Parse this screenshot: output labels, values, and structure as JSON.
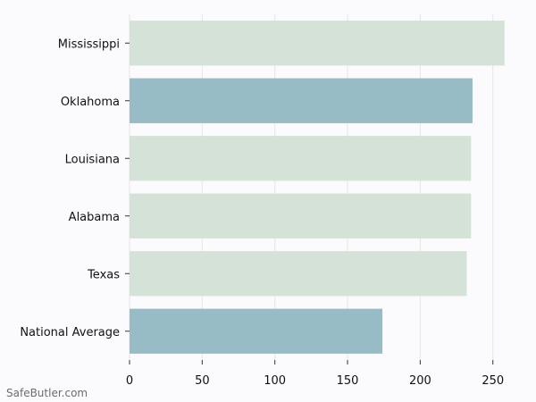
{
  "chart_data": {
    "type": "bar",
    "orientation": "horizontal",
    "title": "",
    "xlabel": "",
    "ylabel": "",
    "categories": [
      "Mississippi",
      "Oklahoma",
      "Louisiana",
      "Alabama",
      "Texas",
      "National Average"
    ],
    "values": [
      258,
      236,
      235,
      235,
      232,
      174
    ],
    "bar_colors": [
      "#d4e2d8",
      "#98bcc6",
      "#d4e2d8",
      "#d4e2d8",
      "#d4e2d8",
      "#98bcc6"
    ],
    "xlim": [
      0,
      260
    ],
    "xticks": [
      0,
      50,
      100,
      150,
      200,
      250
    ],
    "grid": true,
    "grid_color": "#e6e6e6",
    "background": "#fbfbfe"
  },
  "footer": {
    "watermark": "SafeButler.com"
  }
}
